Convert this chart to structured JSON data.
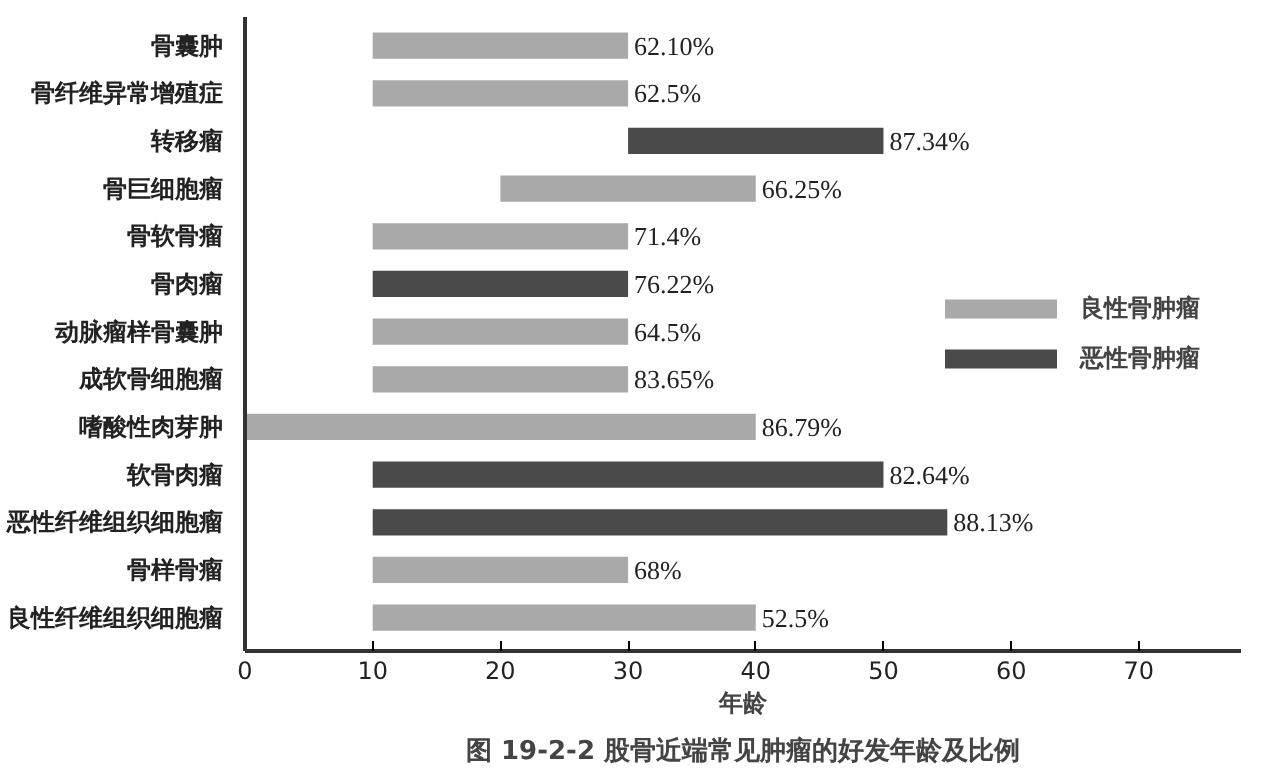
{
  "chart_data": {
    "type": "bar",
    "orientation": "horizontal",
    "xlabel": "年龄",
    "annotations": [
      "图 19-2-2 股骨近端常见肿瘤的好发年龄及比例",
      {
        "text": "62.10%",
        "x": 30,
        "y": "骨囊肿"
      },
      {
        "text": "62.5%",
        "x": 30,
        "y": "骨纤维异常增殖症"
      },
      {
        "text": "87.34%",
        "x": 50,
        "y": "转移瘤"
      },
      {
        "text": "66.25%",
        "x": 40,
        "y": "骨巨细胞瘤"
      },
      {
        "text": "71.4%",
        "x": 30,
        "y": "骨软骨瘤"
      },
      {
        "text": "76.22%",
        "x": 30,
        "y": "骨肉瘤"
      },
      {
        "text": "64.5%",
        "x": 30,
        "y": "动脉瘤样骨囊肿"
      },
      {
        "text": "83.65%",
        "x": 30,
        "y": "成软骨细胞瘤"
      },
      {
        "text": "86.79%",
        "x": 40,
        "y": "嗜酸性肉芽肿"
      },
      {
        "text": "82.64%",
        "x": 50,
        "y": "软骨肉瘤"
      },
      {
        "text": "88.13%",
        "x": 55,
        "y": "恶性纤维组织细胞瘤"
      },
      {
        "text": "68%",
        "x": 30,
        "y": "骨样骨瘤"
      },
      {
        "text": "52.5%",
        "x": 40,
        "y": "良性纤维组织细胞瘤"
      }
    ],
    "categories": [
      "骨囊肿",
      "骨纤维异常增殖症",
      "转移瘤",
      "骨巨细胞瘤",
      "骨软骨瘤",
      "骨肉瘤",
      "动脉瘤样骨囊肿",
      "成软骨细胞瘤",
      "嗜酸性肉芽肿",
      "软骨肉瘤",
      "恶性纤维组织细胞瘤",
      "骨样骨瘤",
      "良性纤维组织细胞瘤"
    ],
    "series": [
      {
        "name": "良性骨肿瘤",
        "color": "#a9a9a9",
        "base": [
          10,
          10,
          null,
          20,
          10,
          null,
          10,
          10,
          0,
          null,
          null,
          10,
          10
        ],
        "values": [
          20,
          20,
          null,
          20,
          20,
          null,
          20,
          20,
          40,
          null,
          null,
          20,
          30
        ]
      },
      {
        "name": "恶性骨肿瘤",
        "color": "#4a4a4a",
        "base": [
          null,
          null,
          30,
          null,
          null,
          10,
          null,
          null,
          null,
          10,
          10,
          null,
          null
        ],
        "values": [
          null,
          null,
          20,
          null,
          null,
          20,
          null,
          null,
          null,
          40,
          45,
          null,
          null
        ]
      }
    ],
    "xlim": [
      0,
      78
    ],
    "xticks": [
      0,
      10,
      20,
      30,
      40,
      50,
      60,
      70
    ],
    "grid": false,
    "legend": "right"
  }
}
